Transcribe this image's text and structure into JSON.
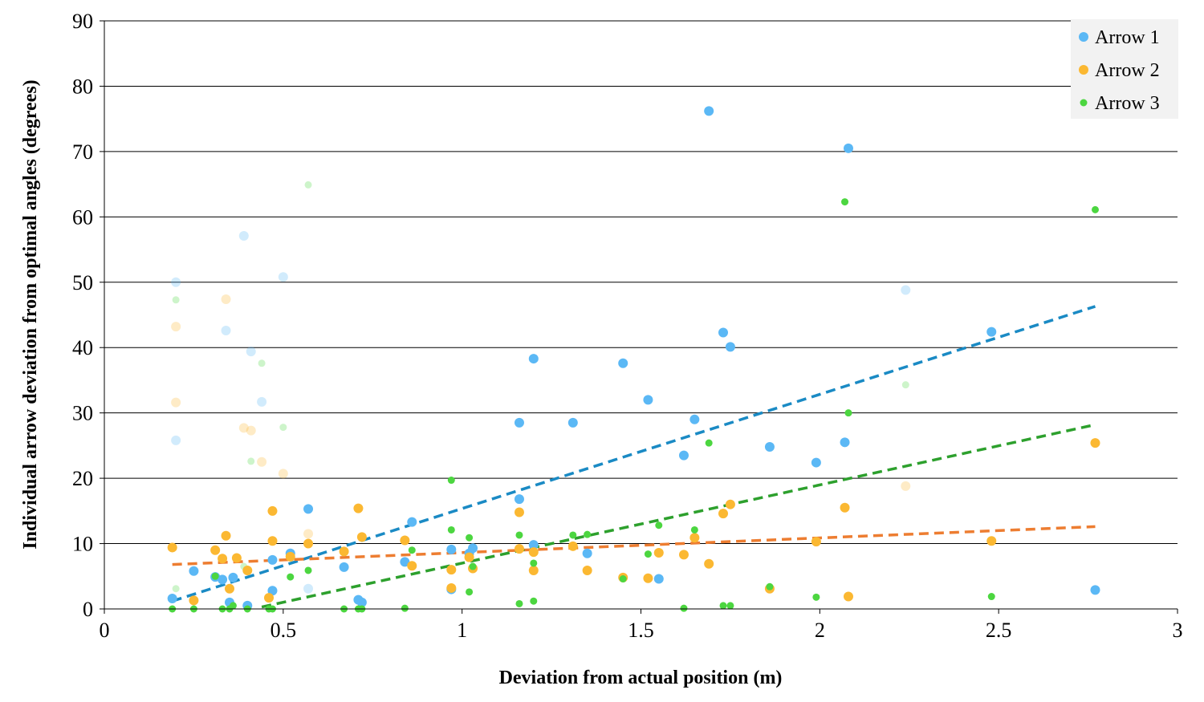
{
  "chart_data": {
    "type": "scatter",
    "xlabel": "Deviation from actual position (m)",
    "ylabel": "Individual arrow deviation from optimal angles (degrees)",
    "xlim": [
      0,
      3
    ],
    "ylim": [
      0,
      90
    ],
    "xticks": [
      "0",
      "0.5",
      "1",
      "1.5",
      "2",
      "2.5",
      "3"
    ],
    "yticks": [
      "0",
      "10",
      "20",
      "30",
      "40",
      "50",
      "60",
      "70",
      "80",
      "90"
    ],
    "grid": "horizontal",
    "legend_position": "top-right",
    "series": [
      {
        "name": "Arrow 1",
        "color": "#5bb8f5",
        "trendline_color": "#1a8ac4",
        "trendline": [
          [
            0.19,
            1.2
          ],
          [
            2.77,
            46.3
          ]
        ],
        "points": [
          [
            0.19,
            1.6
          ],
          [
            0.25,
            5.8
          ],
          [
            0.31,
            4.9
          ],
          [
            0.33,
            4.5
          ],
          [
            0.35,
            1.0
          ],
          [
            0.36,
            4.8
          ],
          [
            0.4,
            0.5
          ],
          [
            0.47,
            2.8
          ],
          [
            0.47,
            7.5
          ],
          [
            0.52,
            8.5
          ],
          [
            0.57,
            15.3
          ],
          [
            0.67,
            6.4
          ],
          [
            0.71,
            1.4
          ],
          [
            0.72,
            1.0
          ],
          [
            0.84,
            7.2
          ],
          [
            0.86,
            13.3
          ],
          [
            0.97,
            9.1
          ],
          [
            0.97,
            3.0
          ],
          [
            1.02,
            8.5
          ],
          [
            1.03,
            9.3
          ],
          [
            1.16,
            16.8
          ],
          [
            1.16,
            28.5
          ],
          [
            1.2,
            38.3
          ],
          [
            1.2,
            9.8
          ],
          [
            1.31,
            28.5
          ],
          [
            1.35,
            8.5
          ],
          [
            1.45,
            37.6
          ],
          [
            1.52,
            32.0
          ],
          [
            1.55,
            4.6
          ],
          [
            1.62,
            23.5
          ],
          [
            1.65,
            29.0
          ],
          [
            1.69,
            76.2
          ],
          [
            1.73,
            42.3
          ],
          [
            1.75,
            40.1
          ],
          [
            1.86,
            24.8
          ],
          [
            1.99,
            22.4
          ],
          [
            2.07,
            25.5
          ],
          [
            2.08,
            70.5
          ],
          [
            2.48,
            42.4
          ],
          [
            2.77,
            2.9
          ]
        ],
        "faded_points": [
          [
            0.2,
            50.0
          ],
          [
            0.2,
            25.8
          ],
          [
            0.34,
            42.6
          ],
          [
            0.39,
            57.1
          ],
          [
            0.41,
            39.4
          ],
          [
            0.44,
            31.7
          ],
          [
            0.5,
            50.8
          ],
          [
            0.57,
            3.1
          ],
          [
            2.24,
            48.8
          ]
        ]
      },
      {
        "name": "Arrow 2",
        "color": "#fbb832",
        "trendline_color": "#ed7d31",
        "trendline": [
          [
            0.19,
            6.8
          ],
          [
            2.77,
            12.6
          ]
        ],
        "points": [
          [
            0.19,
            9.4
          ],
          [
            0.25,
            1.3
          ],
          [
            0.31,
            9.0
          ],
          [
            0.33,
            7.7
          ],
          [
            0.34,
            11.2
          ],
          [
            0.35,
            3.1
          ],
          [
            0.37,
            7.8
          ],
          [
            0.4,
            5.9
          ],
          [
            0.46,
            1.7
          ],
          [
            0.47,
            15.0
          ],
          [
            0.47,
            10.4
          ],
          [
            0.52,
            8.0
          ],
          [
            0.57,
            10.0
          ],
          [
            0.67,
            8.8
          ],
          [
            0.71,
            15.4
          ],
          [
            0.72,
            11.0
          ],
          [
            0.84,
            10.5
          ],
          [
            0.86,
            6.6
          ],
          [
            0.97,
            6.0
          ],
          [
            0.97,
            3.2
          ],
          [
            1.02,
            7.9
          ],
          [
            1.03,
            6.2
          ],
          [
            1.16,
            14.8
          ],
          [
            1.16,
            9.2
          ],
          [
            1.2,
            5.9
          ],
          [
            1.2,
            8.7
          ],
          [
            1.31,
            9.6
          ],
          [
            1.35,
            5.9
          ],
          [
            1.45,
            4.8
          ],
          [
            1.52,
            4.7
          ],
          [
            1.55,
            8.6
          ],
          [
            1.62,
            8.3
          ],
          [
            1.65,
            10.9
          ],
          [
            1.69,
            6.9
          ],
          [
            1.73,
            14.6
          ],
          [
            1.75,
            16.0
          ],
          [
            1.86,
            3.1
          ],
          [
            1.99,
            10.3
          ],
          [
            2.07,
            15.5
          ],
          [
            2.08,
            1.9
          ],
          [
            2.48,
            10.4
          ],
          [
            2.77,
            25.4
          ]
        ],
        "faded_points": [
          [
            0.2,
            43.2
          ],
          [
            0.2,
            31.6
          ],
          [
            0.34,
            47.4
          ],
          [
            0.39,
            27.7
          ],
          [
            0.41,
            27.3
          ],
          [
            0.44,
            22.5
          ],
          [
            0.5,
            20.7
          ],
          [
            0.57,
            11.5
          ],
          [
            2.24,
            18.8
          ]
        ]
      },
      {
        "name": "Arrow 3",
        "color": "#4cd640",
        "trendline_color": "#2da02d",
        "trendline": [
          [
            0.44,
            0.3
          ],
          [
            2.77,
            28.2
          ]
        ],
        "points": [
          [
            0.19,
            0.0
          ],
          [
            0.25,
            0.0
          ],
          [
            0.31,
            5.0
          ],
          [
            0.33,
            0.0
          ],
          [
            0.35,
            0.0
          ],
          [
            0.36,
            0.5
          ],
          [
            0.4,
            0.0
          ],
          [
            0.46,
            0.0
          ],
          [
            0.47,
            0.0
          ],
          [
            0.52,
            4.9
          ],
          [
            0.57,
            5.9
          ],
          [
            0.67,
            0.0
          ],
          [
            0.71,
            0.0
          ],
          [
            0.72,
            0.0
          ],
          [
            0.84,
            0.1
          ],
          [
            0.86,
            9.0
          ],
          [
            0.97,
            19.7
          ],
          [
            0.97,
            12.1
          ],
          [
            1.02,
            10.9
          ],
          [
            1.02,
            2.6
          ],
          [
            1.03,
            6.5
          ],
          [
            1.16,
            11.3
          ],
          [
            1.16,
            0.8
          ],
          [
            1.2,
            7.0
          ],
          [
            1.2,
            1.2
          ],
          [
            1.31,
            11.3
          ],
          [
            1.35,
            11.4
          ],
          [
            1.45,
            4.6
          ],
          [
            1.52,
            8.4
          ],
          [
            1.55,
            12.8
          ],
          [
            1.62,
            0.1
          ],
          [
            1.65,
            12.1
          ],
          [
            1.69,
            25.4
          ],
          [
            1.73,
            0.5
          ],
          [
            1.75,
            0.5
          ],
          [
            1.86,
            3.4
          ],
          [
            1.99,
            1.8
          ],
          [
            2.07,
            62.3
          ],
          [
            2.08,
            30.0
          ],
          [
            2.48,
            1.9
          ],
          [
            2.77,
            61.1
          ]
        ],
        "faded_points": [
          [
            0.2,
            47.3
          ],
          [
            0.2,
            3.1
          ],
          [
            0.39,
            6.5
          ],
          [
            0.41,
            22.6
          ],
          [
            0.44,
            37.6
          ],
          [
            0.5,
            27.8
          ],
          [
            0.57,
            64.9
          ],
          [
            2.24,
            34.3
          ]
        ]
      }
    ]
  }
}
